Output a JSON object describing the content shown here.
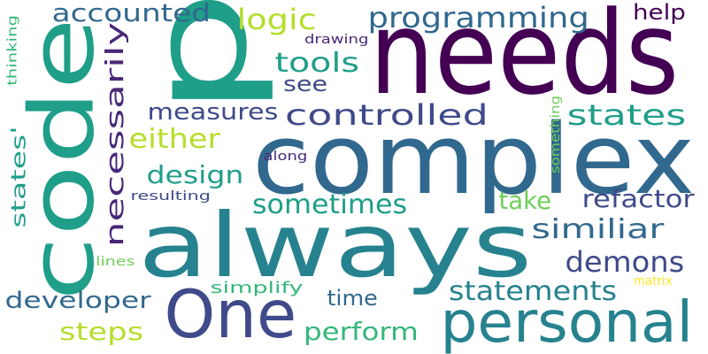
{
  "palette": {
    "dark_purple": "#440154",
    "indigo": "#482878",
    "navy": "#3e4a89",
    "slate_blue": "#31688e",
    "teal_blue": "#26828e",
    "teal": "#1f9e89",
    "green": "#35b779",
    "light_green": "#6ece58",
    "yellow_green": "#b5de2b",
    "yellow": "#fde725"
  },
  "words": [
    {
      "key": "p",
      "text": "p",
      "color": "#1f9e89"
    },
    {
      "key": "needs",
      "text": "needs",
      "color": "#440154"
    },
    {
      "key": "complex",
      "text": "complex",
      "color": "#31688e"
    },
    {
      "key": "always",
      "text": "always",
      "color": "#26828e"
    },
    {
      "key": "code",
      "text": "code",
      "color": "#1f9e89"
    },
    {
      "key": "one",
      "text": "One",
      "color": "#3e4a89"
    },
    {
      "key": "personal",
      "text": "personal",
      "color": "#26828e"
    },
    {
      "key": "programming",
      "text": "programming",
      "color": "#31688e"
    },
    {
      "key": "accounted",
      "text": "accounted",
      "color": "#31688e"
    },
    {
      "key": "logic",
      "text": "logic",
      "color": "#b5de2b"
    },
    {
      "key": "help",
      "text": "help",
      "color": "#440154"
    },
    {
      "key": "tools",
      "text": "tools",
      "color": "#1f9e89"
    },
    {
      "key": "see",
      "text": "see",
      "color": "#3e4a89"
    },
    {
      "key": "necessarily",
      "text": "necessarily",
      "color": "#482878"
    },
    {
      "key": "measures",
      "text": "measures",
      "color": "#3e4a89"
    },
    {
      "key": "controlled",
      "text": "controlled",
      "color": "#3e4a89"
    },
    {
      "key": "states_right",
      "text": "states",
      "color": "#1f9e89"
    },
    {
      "key": "either",
      "text": "either",
      "color": "#b5de2b"
    },
    {
      "key": "design",
      "text": "design",
      "color": "#1f9e89"
    },
    {
      "key": "sometimes",
      "text": "sometimes",
      "color": "#1f9e89"
    },
    {
      "key": "take",
      "text": "take",
      "color": "#6ece58"
    },
    {
      "key": "refactor",
      "text": "refactor",
      "color": "#3e4a89"
    },
    {
      "key": "similiar",
      "text": "similiar",
      "color": "#31688e"
    },
    {
      "key": "demons",
      "text": "demons",
      "color": "#3e4a89"
    },
    {
      "key": "statements",
      "text": "statements",
      "color": "#26828e"
    },
    {
      "key": "time",
      "text": "time",
      "color": "#31688e"
    },
    {
      "key": "developer",
      "text": "developer",
      "color": "#31688e"
    },
    {
      "key": "steps",
      "text": "steps",
      "color": "#b5de2b"
    },
    {
      "key": "perform",
      "text": "perform",
      "color": "#35b779"
    },
    {
      "key": "simplify",
      "text": "simplify",
      "color": "#35b779"
    },
    {
      "key": "states_quote",
      "text": "states'",
      "color": "#1f9e89"
    },
    {
      "key": "thinking",
      "text": "thinking",
      "color": "#35b779"
    },
    {
      "key": "drawing",
      "text": "drawing",
      "color": "#482878"
    },
    {
      "key": "along",
      "text": "along",
      "color": "#482878"
    },
    {
      "key": "resulting",
      "text": "resulting",
      "color": "#3e4a89"
    },
    {
      "key": "something",
      "text": "something",
      "color": "#6ece58"
    },
    {
      "key": "lines",
      "text": "lines",
      "color": "#6ece58"
    },
    {
      "key": "matrix",
      "text": "matrix",
      "color": "#fde725"
    }
  ]
}
